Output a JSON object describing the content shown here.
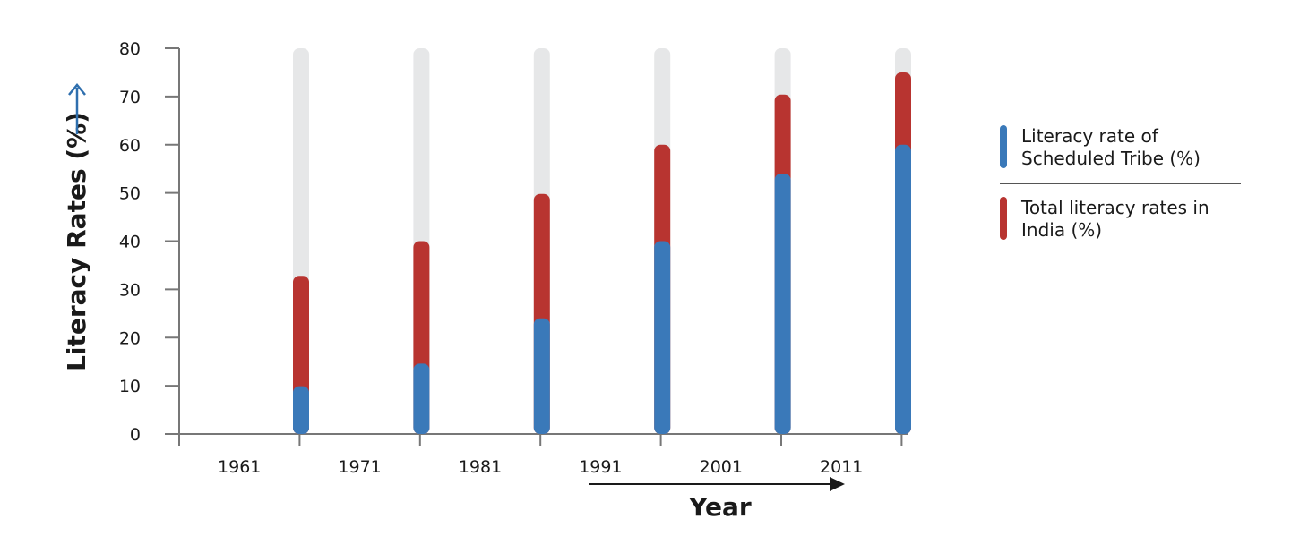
{
  "chart_data": {
    "type": "bar",
    "categories": [
      "1961",
      "1971",
      "1981",
      "1991",
      "2001",
      "2011"
    ],
    "series": [
      {
        "name": "Literacy rate of Scheduled Tribe (%)",
        "values": [
          9.9,
          14.6,
          24.0,
          40.0,
          54.0,
          60.0
        ],
        "color": "#3a79b9"
      },
      {
        "name": "Total literacy rates in India (%)",
        "values": [
          32.8,
          40.0,
          49.8,
          60.0,
          70.4,
          75.0
        ],
        "color": "#b83430"
      }
    ],
    "background_color": "#e6e7e8",
    "ylim": [
      0,
      80
    ],
    "yticks": [
      "0",
      "10",
      "20",
      "30",
      "40",
      "50",
      "60",
      "70",
      "80"
    ],
    "xlabel": "Year",
    "ylabel": "Literacy Rates (%)",
    "axis_arrow_color_y": "#2f6fae",
    "axis_arrow_color_x": "#1a1a1a",
    "legend": "right",
    "grid": false
  }
}
